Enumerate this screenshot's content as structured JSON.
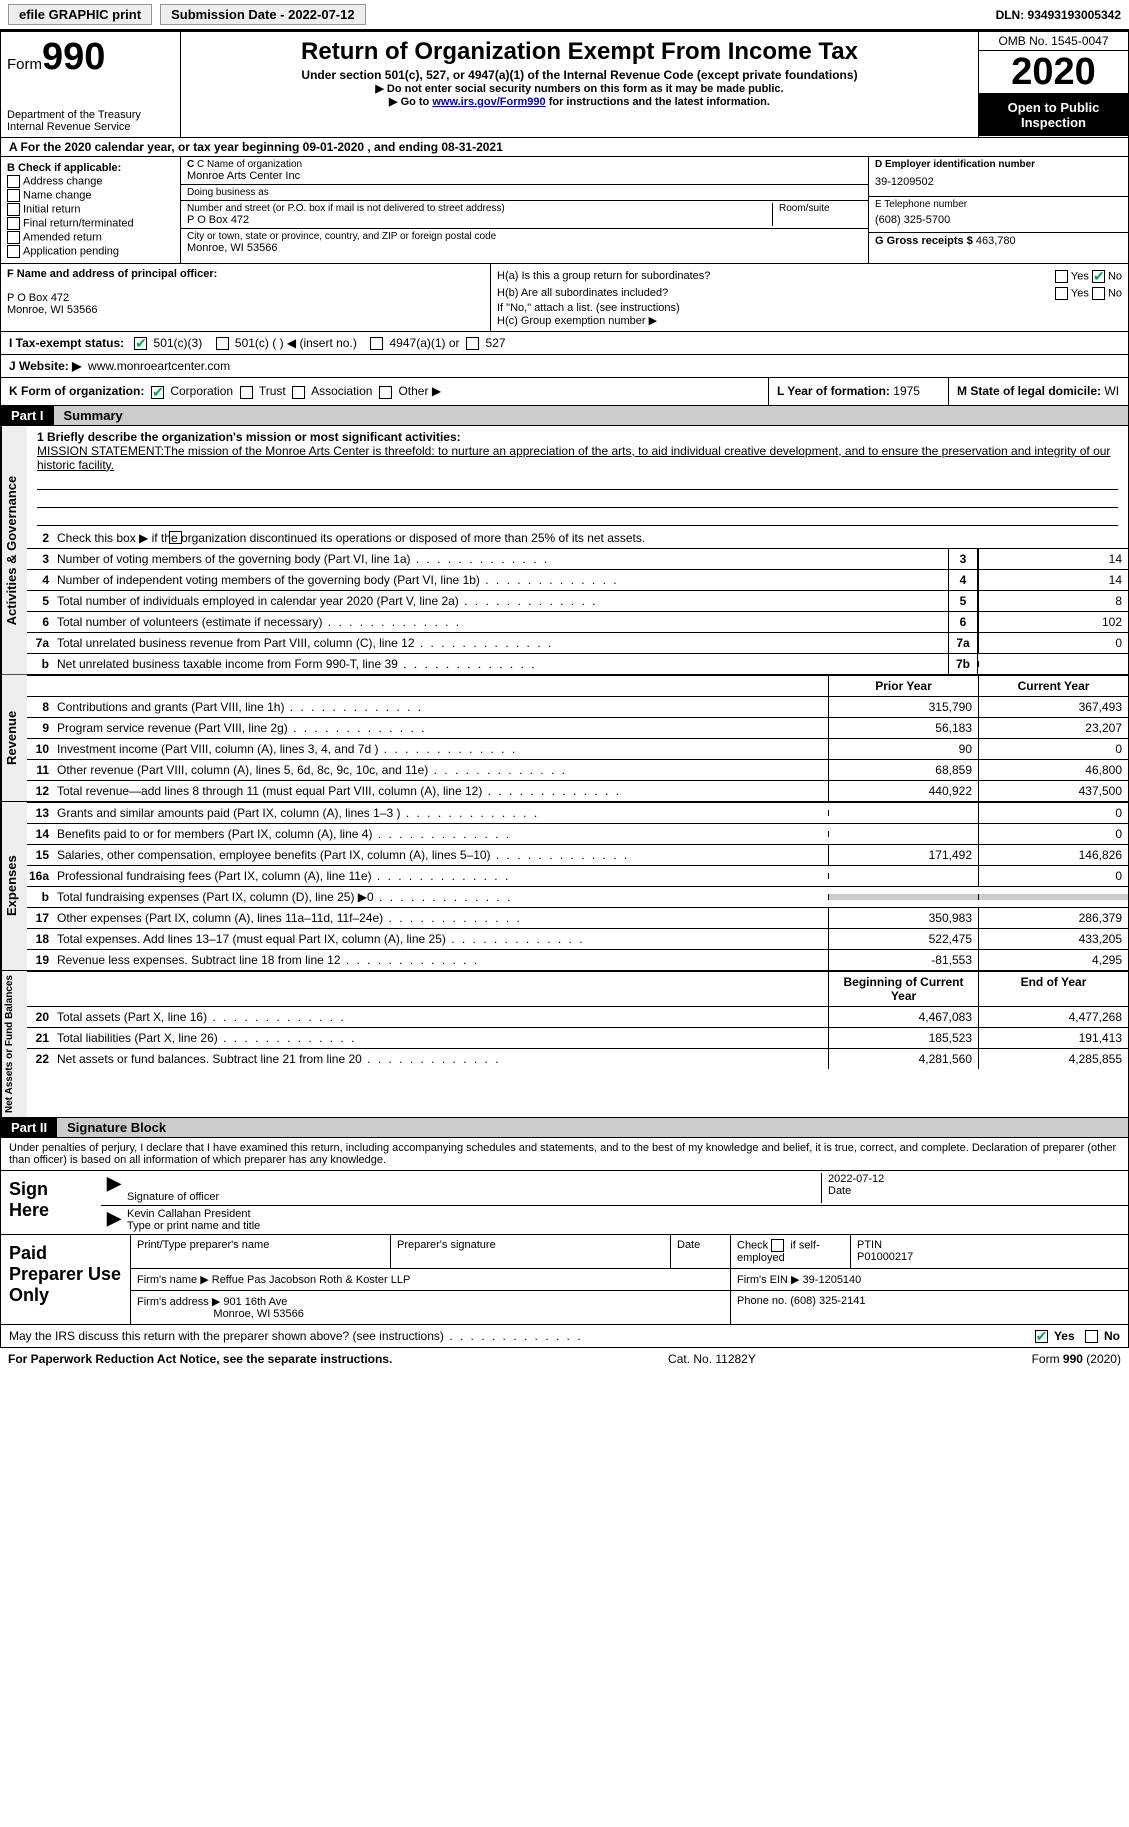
{
  "topbar": {
    "efile": "efile GRAPHIC print",
    "submission": "Submission Date - 2022-07-12",
    "dln": "DLN: 93493193005342"
  },
  "header": {
    "form_label": "Form",
    "form_no": "990",
    "dept": "Department of the Treasury\nInternal Revenue Service",
    "title": "Return of Organization Exempt From Income Tax",
    "sub": "Under section 501(c), 527, or 4947(a)(1) of the Internal Revenue Code (except private foundations)",
    "note1": "▶ Do not enter social security numbers on this form as it may be made public.",
    "note2_pre": "▶ Go to ",
    "note2_link": "www.irs.gov/Form990",
    "note2_post": " for instructions and the latest information.",
    "omb": "OMB No. 1545-0047",
    "year": "2020",
    "open": "Open to Public Inspection"
  },
  "line_a": "A For the 2020 calendar year, or tax year beginning 09-01-2020    , and ending 08-31-2021",
  "col_b": {
    "hdr": "B Check if applicable:",
    "opts": [
      "Address change",
      "Name change",
      "Initial return",
      "Final return/terminated",
      "Amended return",
      "Application pending"
    ]
  },
  "col_c": {
    "name_lbl": "C Name of organization",
    "name": "Monroe Arts Center Inc",
    "dba_lbl": "Doing business as",
    "dba": "",
    "addr_lbl": "Number and street (or P.O. box if mail is not delivered to street address)",
    "room_lbl": "Room/suite",
    "addr": "P O Box 472",
    "city_lbl": "City or town, state or province, country, and ZIP or foreign postal code",
    "city": "Monroe, WI  53566"
  },
  "col_d": {
    "ein_lbl": "D Employer identification number",
    "ein": "39-1209502",
    "phone_lbl": "E Telephone number",
    "phone": "(608) 325-5700",
    "gross_lbl": "G Gross receipts $",
    "gross": "463,780"
  },
  "f": {
    "lbl": "F Name and address of principal officer:",
    "addr1": "P O Box 472",
    "addr2": "Monroe, WI  53566"
  },
  "h": {
    "a_lbl": "H(a)  Is this a group return for subordinates?",
    "b_lbl": "H(b)  Are all subordinates included?",
    "b_note": "If \"No,\" attach a list. (see instructions)",
    "c_lbl": "H(c)  Group exemption number ▶",
    "yes": "Yes",
    "no": "No"
  },
  "i": {
    "lbl": "I    Tax-exempt status:",
    "o1": "501(c)(3)",
    "o2": "501(c) (   ) ◀ (insert no.)",
    "o3": "4947(a)(1) or",
    "o4": "527"
  },
  "j": {
    "lbl": "J   Website: ▶",
    "val": "www.monroeartcenter.com"
  },
  "k": {
    "lbl": "K Form of organization:",
    "o1": "Corporation",
    "o2": "Trust",
    "o3": "Association",
    "o4": "Other ▶"
  },
  "l": {
    "lbl": "L Year of formation:",
    "val": "1975"
  },
  "m": {
    "lbl": "M State of legal domicile:",
    "val": "WI"
  },
  "part1": {
    "lbl": "Part I",
    "title": "Summary"
  },
  "mission": {
    "q1": "1  Briefly describe the organization's mission or most significant activities:",
    "text": "MISSION STATEMENT:The mission of the Monroe Arts Center is threefold: to nurture an appreciation of the arts, to aid individual creative development, and to ensure the preservation and integrity of our historic facility."
  },
  "gov": {
    "q2": "Check this box ▶        if the organization discontinued its operations or disposed of more than 25% of its net assets.",
    "rows": [
      {
        "n": "3",
        "d": "Number of voting members of the governing body (Part VI, line 1a)",
        "cn": "3",
        "v": "14"
      },
      {
        "n": "4",
        "d": "Number of independent voting members of the governing body (Part VI, line 1b)",
        "cn": "4",
        "v": "14"
      },
      {
        "n": "5",
        "d": "Total number of individuals employed in calendar year 2020 (Part V, line 2a)",
        "cn": "5",
        "v": "8"
      },
      {
        "n": "6",
        "d": "Total number of volunteers (estimate if necessary)",
        "cn": "6",
        "v": "102"
      },
      {
        "n": "7a",
        "d": "Total unrelated business revenue from Part VIII, column (C), line 12",
        "cn": "7a",
        "v": "0"
      },
      {
        "n": "b",
        "d": "Net unrelated business taxable income from Form 990-T, line 39",
        "cn": "7b",
        "v": ""
      }
    ]
  },
  "cols": {
    "prior": "Prior Year",
    "current": "Current Year",
    "boy": "Beginning of Current Year",
    "eoy": "End of Year"
  },
  "rev": [
    {
      "n": "8",
      "d": "Contributions and grants (Part VIII, line 1h)",
      "p": "315,790",
      "c": "367,493"
    },
    {
      "n": "9",
      "d": "Program service revenue (Part VIII, line 2g)",
      "p": "56,183",
      "c": "23,207"
    },
    {
      "n": "10",
      "d": "Investment income (Part VIII, column (A), lines 3, 4, and 7d )",
      "p": "90",
      "c": "0"
    },
    {
      "n": "11",
      "d": "Other revenue (Part VIII, column (A), lines 5, 6d, 8c, 9c, 10c, and 11e)",
      "p": "68,859",
      "c": "46,800"
    },
    {
      "n": "12",
      "d": "Total revenue—add lines 8 through 11 (must equal Part VIII, column (A), line 12)",
      "p": "440,922",
      "c": "437,500"
    }
  ],
  "exp": [
    {
      "n": "13",
      "d": "Grants and similar amounts paid (Part IX, column (A), lines 1–3 )",
      "p": "",
      "c": "0"
    },
    {
      "n": "14",
      "d": "Benefits paid to or for members (Part IX, column (A), line 4)",
      "p": "",
      "c": "0"
    },
    {
      "n": "15",
      "d": "Salaries, other compensation, employee benefits (Part IX, column (A), lines 5–10)",
      "p": "171,492",
      "c": "146,826"
    },
    {
      "n": "16a",
      "d": "Professional fundraising fees (Part IX, column (A), line 11e)",
      "p": "",
      "c": "0"
    },
    {
      "n": "b",
      "d": "Total fundraising expenses (Part IX, column (D), line 25) ▶0",
      "p": "GRAY",
      "c": "GRAY"
    },
    {
      "n": "17",
      "d": "Other expenses (Part IX, column (A), lines 11a–11d, 11f–24e)",
      "p": "350,983",
      "c": "286,379"
    },
    {
      "n": "18",
      "d": "Total expenses. Add lines 13–17 (must equal Part IX, column (A), line 25)",
      "p": "522,475",
      "c": "433,205"
    },
    {
      "n": "19",
      "d": "Revenue less expenses. Subtract line 18 from line 12",
      "p": "-81,553",
      "c": "4,295"
    }
  ],
  "net": [
    {
      "n": "20",
      "d": "Total assets (Part X, line 16)",
      "p": "4,467,083",
      "c": "4,477,268"
    },
    {
      "n": "21",
      "d": "Total liabilities (Part X, line 26)",
      "p": "185,523",
      "c": "191,413"
    },
    {
      "n": "22",
      "d": "Net assets or fund balances. Subtract line 21 from line 20",
      "p": "4,281,560",
      "c": "4,285,855"
    }
  ],
  "tabs": {
    "gov": "Activities & Governance",
    "rev": "Revenue",
    "exp": "Expenses",
    "net": "Net Assets or Fund Balances"
  },
  "part2": {
    "lbl": "Part II",
    "title": "Signature Block"
  },
  "decl": "Under penalties of perjury, I declare that I have examined this return, including accompanying schedules and statements, and to the best of my knowledge and belief, it is true, correct, and complete. Declaration of preparer (other than officer) is based on all information of which preparer has any knowledge.",
  "sign": {
    "here": "Sign Here",
    "sig_lbl": "Signature of officer",
    "date": "2022-07-12",
    "date_lbl": "Date",
    "name": "Kevin Callahan  President",
    "name_lbl": "Type or print name and title"
  },
  "paid": {
    "hdr": "Paid Preparer Use Only",
    "h1": "Print/Type preparer's name",
    "h2": "Preparer's signature",
    "h3": "Date",
    "h4_pre": "Check",
    "h4_post": "if self-employed",
    "h5": "PTIN",
    "ptin": "P01000217",
    "firm_lbl": "Firm's name    ▶",
    "firm": "Reffue Pas Jacobson Roth & Koster LLP",
    "ein_lbl": "Firm's EIN ▶",
    "ein": "39-1205140",
    "addr_lbl": "Firm's address ▶",
    "addr1": "901 16th Ave",
    "addr2": "Monroe, WI  53566",
    "phone_lbl": "Phone no.",
    "phone": "(608) 325-2141"
  },
  "discuss": {
    "q": "May the IRS discuss this return with the preparer shown above? (see instructions)",
    "yes": "Yes",
    "no": "No"
  },
  "footer": {
    "pra": "For Paperwork Reduction Act Notice, see the separate instructions.",
    "cat": "Cat. No. 11282Y",
    "form": "Form 990 (2020)"
  }
}
